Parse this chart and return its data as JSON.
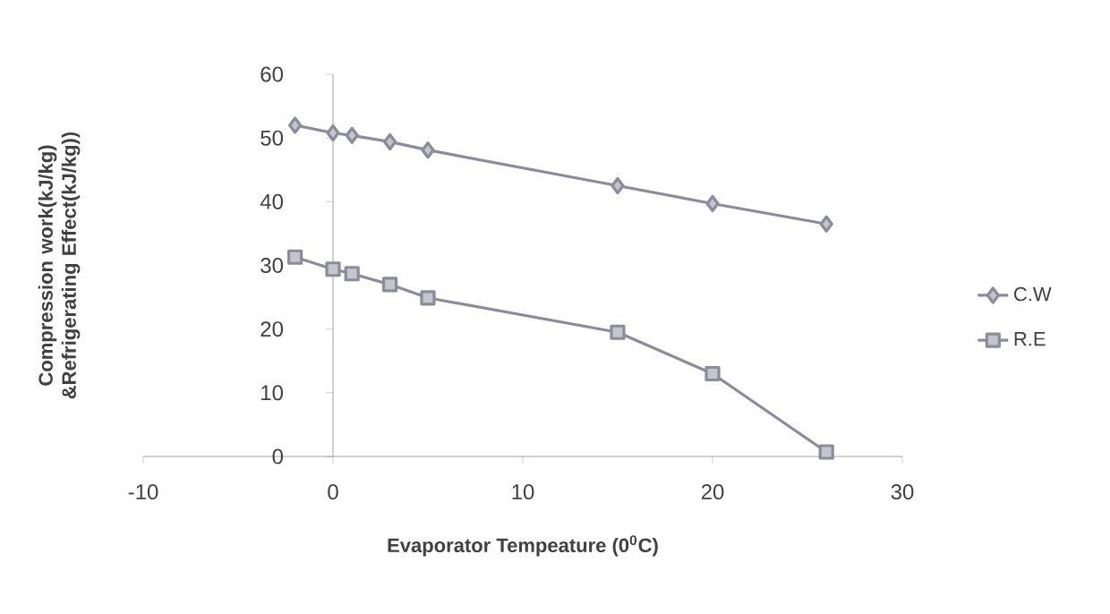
{
  "chart_data": {
    "type": "line",
    "xlabel": "Evaporator Tempeature (0$^{0}$C)",
    "ylabel": "Compression work(kJ/kg) &Refrigerating Effect(kJ/kg))",
    "x": [
      -2,
      0,
      1,
      3,
      5,
      15,
      20,
      26
    ],
    "series": [
      {
        "name": "C.W",
        "color": "#8a8c9c",
        "marker": "diamond",
        "values": [
          52,
          50.8,
          50.4,
          49.4,
          48.1,
          42.5,
          39.7,
          36.5
        ]
      },
      {
        "name": "R.E",
        "color": "#8a8c9c",
        "marker": "square",
        "values": [
          31.3,
          29.4,
          28.7,
          27.0,
          24.9,
          19.5,
          13.0,
          0.7
        ]
      }
    ],
    "xlim": [
      -10,
      30
    ],
    "xticks": [
      -10,
      0,
      10,
      20,
      30
    ],
    "ylim": [
      0,
      60
    ],
    "yticks": [
      0,
      10,
      20,
      30,
      40,
      50,
      60
    ],
    "grid": false,
    "legend": "right",
    "line_style": "solid"
  }
}
